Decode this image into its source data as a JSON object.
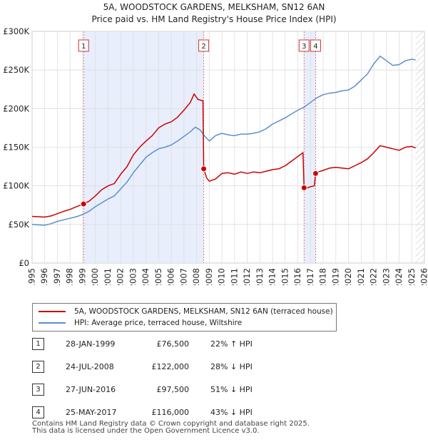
{
  "title": {
    "line1": "5A, WOODSTOCK GARDENS, MELKSHAM, SN12 6AN",
    "line2": "Price paid vs. HM Land Registry's House Price Index (HPI)"
  },
  "chart_data": {
    "type": "line",
    "title": "5A, WOODSTOCK GARDENS, MELKSHAM, SN12 6AN — Price paid vs. HM Land Registry's House Price Index (HPI)",
    "xlim": [
      1995,
      2026
    ],
    "ylim": [
      0,
      300000
    ],
    "y_ticks": [
      0,
      50000,
      100000,
      150000,
      200000,
      250000,
      300000
    ],
    "y_tick_labels": [
      "£0",
      "£50K",
      "£100K",
      "£150K",
      "£200K",
      "£250K",
      "£300K"
    ],
    "x_ticks": [
      1995,
      1996,
      1997,
      1998,
      1999,
      2000,
      2001,
      2002,
      2003,
      2004,
      2005,
      2006,
      2007,
      2008,
      2009,
      2010,
      2011,
      2012,
      2013,
      2014,
      2015,
      2016,
      2017,
      2018,
      2019,
      2020,
      2021,
      2022,
      2023,
      2024,
      2025,
      2026
    ],
    "x_tick_labels": [
      "1995",
      "1996",
      "1997",
      "1998",
      "1999",
      "2000",
      "2001",
      "2002",
      "2003",
      "2004",
      "2005",
      "2006",
      "2007",
      "2008",
      "2009",
      "2010",
      "2011",
      "2012",
      "2013",
      "2014",
      "2015",
      "2016",
      "2017",
      "2018",
      "2019",
      "2020",
      "2021",
      "2022",
      "2023",
      "2024",
      "2025",
      "2026"
    ],
    "grid": true,
    "shaded_ranges": [
      [
        1999.07,
        2008.56
      ],
      [
        2016.49,
        2017.4
      ]
    ],
    "hatched_from": 2025.3,
    "series": [
      {
        "name": "5A, WOODSTOCK GARDENS, MELKSHAM, SN12 6AN (terraced house)",
        "color": "#cc0000",
        "points": [
          [
            1995.0,
            60500
          ],
          [
            1995.5,
            60000
          ],
          [
            1996.0,
            59500
          ],
          [
            1996.5,
            61000
          ],
          [
            1997.0,
            64000
          ],
          [
            1997.5,
            67000
          ],
          [
            1998.0,
            69500
          ],
          [
            1998.5,
            73000
          ],
          [
            1999.07,
            76500
          ],
          [
            1999.5,
            80000
          ],
          [
            2000.0,
            87000
          ],
          [
            2000.5,
            95000
          ],
          [
            2001.0,
            100000
          ],
          [
            2001.5,
            103000
          ],
          [
            2002.0,
            115000
          ],
          [
            2002.5,
            125000
          ],
          [
            2003.0,
            140000
          ],
          [
            2003.5,
            150000
          ],
          [
            2004.0,
            158000
          ],
          [
            2004.5,
            165000
          ],
          [
            2005.0,
            175000
          ],
          [
            2005.5,
            180000
          ],
          [
            2006.0,
            183000
          ],
          [
            2006.5,
            189000
          ],
          [
            2007.0,
            198000
          ],
          [
            2007.5,
            208000
          ],
          [
            2007.8,
            219000
          ],
          [
            2008.1,
            212000
          ],
          [
            2008.5,
            210000
          ],
          [
            2008.56,
            122000
          ],
          [
            2008.8,
            110000
          ],
          [
            2009.0,
            106000
          ],
          [
            2009.5,
            109000
          ],
          [
            2010.0,
            116000
          ],
          [
            2010.5,
            117000
          ],
          [
            2011.0,
            115000
          ],
          [
            2011.5,
            118000
          ],
          [
            2012.0,
            116000
          ],
          [
            2012.5,
            118000
          ],
          [
            2013.0,
            117000
          ],
          [
            2013.5,
            119000
          ],
          [
            2014.0,
            121000
          ],
          [
            2014.5,
            122000
          ],
          [
            2015.0,
            126000
          ],
          [
            2015.5,
            132000
          ],
          [
            2016.0,
            138000
          ],
          [
            2016.4,
            143000
          ],
          [
            2016.49,
            97500
          ],
          [
            2016.7,
            97000
          ],
          [
            2017.0,
            99000
          ],
          [
            2017.3,
            100000
          ],
          [
            2017.4,
            116000
          ],
          [
            2017.6,
            118000
          ],
          [
            2018.0,
            120000
          ],
          [
            2018.5,
            123000
          ],
          [
            2019.0,
            124000
          ],
          [
            2019.5,
            123000
          ],
          [
            2020.0,
            122000
          ],
          [
            2020.5,
            126000
          ],
          [
            2021.0,
            130000
          ],
          [
            2021.5,
            135000
          ],
          [
            2022.0,
            143000
          ],
          [
            2022.5,
            152000
          ],
          [
            2023.0,
            150000
          ],
          [
            2023.5,
            148000
          ],
          [
            2024.0,
            146000
          ],
          [
            2024.5,
            150000
          ],
          [
            2025.0,
            151000
          ],
          [
            2025.3,
            149000
          ]
        ]
      },
      {
        "name": "HPI: Average price, terraced house, Wiltshire",
        "color": "#5b8fcf",
        "points": [
          [
            1995.0,
            50000
          ],
          [
            1995.5,
            49500
          ],
          [
            1996.0,
            49000
          ],
          [
            1996.5,
            51000
          ],
          [
            1997.0,
            54000
          ],
          [
            1997.5,
            56000
          ],
          [
            1998.0,
            58000
          ],
          [
            1998.5,
            60000
          ],
          [
            1999.0,
            63000
          ],
          [
            1999.5,
            67000
          ],
          [
            2000.0,
            73000
          ],
          [
            2000.5,
            78000
          ],
          [
            2001.0,
            83000
          ],
          [
            2001.5,
            87000
          ],
          [
            2002.0,
            96000
          ],
          [
            2002.5,
            105000
          ],
          [
            2003.0,
            117000
          ],
          [
            2003.5,
            127000
          ],
          [
            2004.0,
            137000
          ],
          [
            2004.5,
            143000
          ],
          [
            2005.0,
            148000
          ],
          [
            2005.5,
            150000
          ],
          [
            2006.0,
            153000
          ],
          [
            2006.5,
            158000
          ],
          [
            2007.0,
            164000
          ],
          [
            2007.5,
            170000
          ],
          [
            2007.9,
            176000
          ],
          [
            2008.3,
            172000
          ],
          [
            2008.6,
            165000
          ],
          [
            2009.0,
            158000
          ],
          [
            2009.5,
            165000
          ],
          [
            2010.0,
            168000
          ],
          [
            2010.5,
            166000
          ],
          [
            2011.0,
            165000
          ],
          [
            2011.5,
            167000
          ],
          [
            2012.0,
            167000
          ],
          [
            2012.5,
            168000
          ],
          [
            2013.0,
            170000
          ],
          [
            2013.5,
            174000
          ],
          [
            2014.0,
            180000
          ],
          [
            2014.5,
            184000
          ],
          [
            2015.0,
            188000
          ],
          [
            2015.5,
            193000
          ],
          [
            2016.0,
            198000
          ],
          [
            2016.5,
            202000
          ],
          [
            2017.0,
            208000
          ],
          [
            2017.5,
            214000
          ],
          [
            2018.0,
            218000
          ],
          [
            2018.5,
            220000
          ],
          [
            2019.0,
            221000
          ],
          [
            2019.5,
            223000
          ],
          [
            2020.0,
            224000
          ],
          [
            2020.5,
            229000
          ],
          [
            2021.0,
            237000
          ],
          [
            2021.5,
            245000
          ],
          [
            2022.0,
            258000
          ],
          [
            2022.5,
            268000
          ],
          [
            2023.0,
            262000
          ],
          [
            2023.5,
            256000
          ],
          [
            2024.0,
            257000
          ],
          [
            2024.5,
            262000
          ],
          [
            2025.0,
            264000
          ],
          [
            2025.3,
            263000
          ]
        ]
      }
    ],
    "sales": [
      {
        "id": "1",
        "x": 1999.07,
        "price": 76500
      },
      {
        "id": "2",
        "x": 2008.56,
        "price": 122000
      },
      {
        "id": "3",
        "x": 2016.49,
        "price": 97500
      },
      {
        "id": "4",
        "x": 2017.4,
        "price": 116000
      }
    ],
    "legend": [
      {
        "label": "5A, WOODSTOCK GARDENS, MELKSHAM, SN12 6AN (terraced house)",
        "color": "#cc0000"
      },
      {
        "label": "HPI: Average price, terraced house, Wiltshire",
        "color": "#5b8fcf"
      }
    ]
  },
  "sales_table": [
    {
      "num": "1",
      "date": "28-JAN-1999",
      "price": "£76,500",
      "hpi": "22% ↑ HPI"
    },
    {
      "num": "2",
      "date": "24-JUL-2008",
      "price": "£122,000",
      "hpi": "28% ↓ HPI"
    },
    {
      "num": "3",
      "date": "27-JUN-2016",
      "price": "£97,500",
      "hpi": "51% ↓ HPI"
    },
    {
      "num": "4",
      "date": "25-MAY-2017",
      "price": "£116,000",
      "hpi": "43% ↓ HPI"
    }
  ],
  "footer": {
    "line1": "Contains HM Land Registry data © Crown copyright and database right 2025.",
    "line2": "This data is licensed under the Open Government Licence v3.0."
  }
}
